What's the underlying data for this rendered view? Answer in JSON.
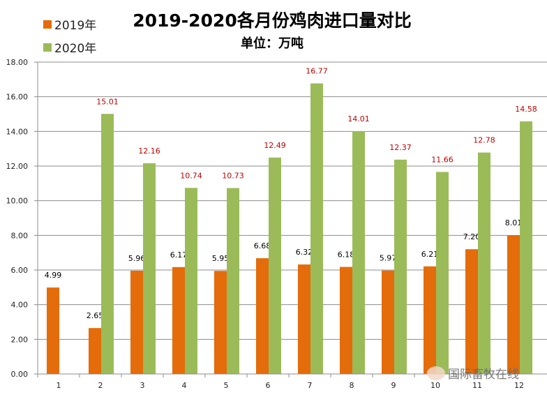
{
  "chart_data": {
    "type": "bar",
    "title": "2019-2020各月份鸡肉进口量对比",
    "subtitle": "单位：万吨",
    "categories": [
      "1",
      "2",
      "3",
      "4",
      "5",
      "6",
      "7",
      "8",
      "9",
      "10",
      "11",
      "12"
    ],
    "series": [
      {
        "name": "2019年",
        "color": "#E46C0A",
        "label_color": "#000000",
        "values": [
          4.99,
          2.65,
          5.96,
          6.17,
          5.95,
          6.68,
          6.32,
          6.18,
          5.97,
          6.21,
          7.2,
          8.01
        ],
        "labels": [
          "4.99",
          "2.65",
          "5.96",
          "6.17",
          "5.95",
          "6.68",
          "6.32",
          "6.18",
          "5.97",
          "6.21",
          "7.20",
          "8.01"
        ]
      },
      {
        "name": "2020年",
        "color": "#9BBB59",
        "label_color": "#C00000",
        "values": [
          null,
          15.01,
          12.16,
          10.74,
          10.73,
          12.49,
          16.77,
          14.01,
          12.37,
          11.66,
          12.78,
          14.58
        ],
        "labels": [
          "",
          "15.01",
          "12.16",
          "10.74",
          "10.73",
          "12.49",
          "16.77",
          "14.01",
          "12.37",
          "11.66",
          "12.78",
          "14.58"
        ]
      }
    ],
    "ylim": [
      0,
      18
    ],
    "yticks": [
      "0.00",
      "2.00",
      "4.00",
      "6.00",
      "8.00",
      "10.00",
      "12.00",
      "14.00",
      "16.00",
      "18.00"
    ],
    "grid": true,
    "legend_position": "top-left"
  },
  "watermark": "国际畜牧在线"
}
